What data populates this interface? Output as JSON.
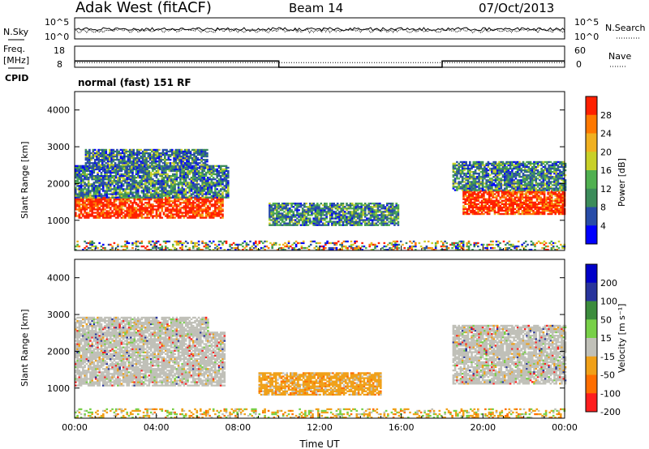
{
  "header": {
    "station": "Adak West (fitACF)",
    "beam": "Beam 14",
    "date": "07/Oct/2013"
  },
  "panels": {
    "sky": {
      "left_label": "N.Sky",
      "ticks": [
        "10^5",
        "10^0"
      ],
      "right_ticks": [
        "10^5",
        "10^0"
      ],
      "right_label": "N.Search",
      "right_label_style": "dotted"
    },
    "freq": {
      "left_label_top": "Freq.",
      "left_label_bottom": "[MHz]",
      "left_ticks": [
        "18",
        "8"
      ],
      "right_ticks": [
        "60",
        "0"
      ],
      "right_label": "Nave",
      "right_label_style": "dotted",
      "freq_level": 10.2,
      "nave_level": 18,
      "nave_steps": [
        {
          "from": "00:00",
          "to": "10:00",
          "nave": 18
        },
        {
          "from": "10:00",
          "to": "18:00",
          "nave": 0
        },
        {
          "from": "18:00",
          "to": "00:00",
          "nave": 18
        }
      ]
    },
    "cpid": {
      "label": "CPID",
      "text": "normal (fast) 151 RF"
    }
  },
  "chart_data": [
    {
      "type": "heatmap",
      "quantity": "Power",
      "ylabel": "Slant Range [km]",
      "xlabel": "",
      "ylim": [
        180,
        4500
      ],
      "yticks": [
        "1000",
        "2000",
        "3000",
        "4000"
      ],
      "x_ticks": [
        "00:00",
        "04:00",
        "08:00",
        "12:00",
        "16:00",
        "20:00",
        "00:00"
      ],
      "colorbar": {
        "label": "Power [dB]",
        "ticks": [
          "4",
          "8",
          "12",
          "16",
          "20",
          "24",
          "28"
        ],
        "colors": [
          "#0000ff",
          "#284ca8",
          "#3c8c5a",
          "#50b050",
          "#c8d028",
          "#f0b020",
          "#ff7800",
          "#ff2000"
        ]
      },
      "regions": [
        {
          "t0": 0.0,
          "t1": 7.2,
          "r0": 1050,
          "r1": 1600,
          "level": "very_high"
        },
        {
          "t0": 0.0,
          "t1": 7.5,
          "r0": 1600,
          "r1": 2500,
          "level": "medium"
        },
        {
          "t0": 0.5,
          "t1": 6.5,
          "r0": 2400,
          "r1": 2900,
          "level": "medium_low"
        },
        {
          "t0": 9.5,
          "t1": 15.8,
          "r0": 850,
          "r1": 1450,
          "level": "medium"
        },
        {
          "t0": 19.0,
          "t1": 24.0,
          "r0": 1150,
          "r1": 1800,
          "level": "very_high"
        },
        {
          "t0": 18.5,
          "t1": 24.0,
          "r0": 1800,
          "r1": 2600,
          "level": "medium"
        },
        {
          "t0": 0.0,
          "t1": 24.0,
          "r0": 180,
          "r1": 450,
          "level": "mixed_sparse"
        }
      ]
    },
    {
      "type": "heatmap",
      "quantity": "Velocity",
      "ylabel": "Slant Range [km]",
      "xlabel": "Time UT",
      "ylim": [
        180,
        4500
      ],
      "yticks": [
        "1000",
        "2000",
        "3000",
        "4000"
      ],
      "x_ticks": [
        "00:00",
        "04:00",
        "08:00",
        "12:00",
        "16:00",
        "20:00",
        "00:00"
      ],
      "colorbar": {
        "label": "Velocity [m s⁻¹]",
        "ticks": [
          "200",
          "100",
          "50",
          "15",
          "-15",
          "-50",
          "-100",
          "-200"
        ],
        "colors": [
          "#0000c8",
          "#28349c",
          "#3c8c3c",
          "#78d048",
          "#c0c0b8",
          "#f0a018",
          "#ff6e00",
          "#ff1e1e"
        ]
      },
      "regions": [
        {
          "t0": 0.0,
          "t1": 7.3,
          "r0": 1050,
          "r1": 2500,
          "level": "ground_scatter_gray"
        },
        {
          "t0": 0.0,
          "t1": 6.5,
          "r0": 2400,
          "r1": 2900,
          "level": "ground_scatter_gray"
        },
        {
          "t0": 9.0,
          "t1": 15.0,
          "r0": 800,
          "r1": 1400,
          "level": "orange_negative"
        },
        {
          "t0": 18.5,
          "t1": 24.0,
          "r0": 1100,
          "r1": 2700,
          "level": "ground_scatter_gray"
        },
        {
          "t0": 0.0,
          "t1": 24.0,
          "r0": 180,
          "r1": 450,
          "level": "mixed_orange_green"
        }
      ]
    }
  ]
}
